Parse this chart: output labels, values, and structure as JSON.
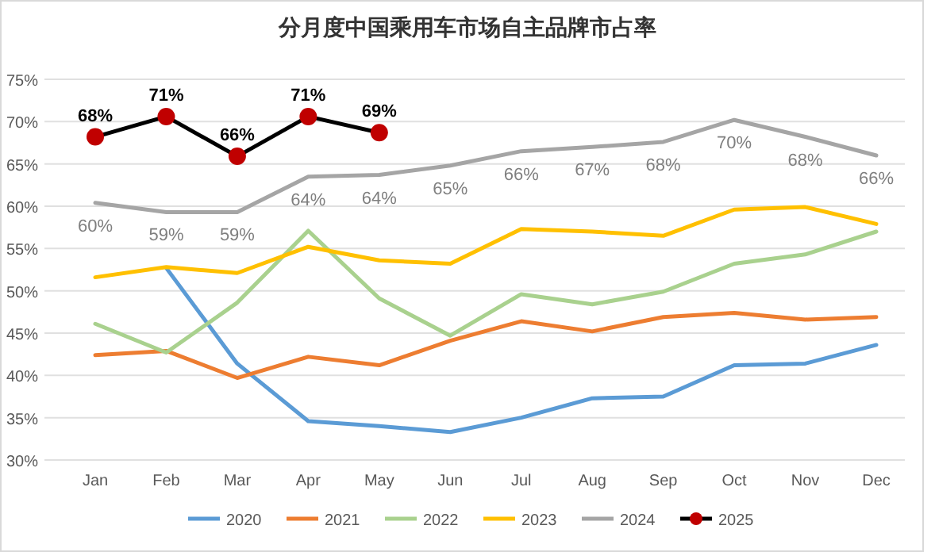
{
  "chart_data": {
    "type": "line",
    "title": "分月度中国乘用车市场自主品牌市占率",
    "categories": [
      "Jan",
      "Feb",
      "Mar",
      "Apr",
      "May",
      "Jun",
      "Jul",
      "Aug",
      "Sep",
      "Oct",
      "Nov",
      "Dec"
    ],
    "ylim": [
      30,
      75
    ],
    "yticks": [
      {
        "value": 30,
        "label": "30%"
      },
      {
        "value": 35,
        "label": "35%"
      },
      {
        "value": 40,
        "label": "40%"
      },
      {
        "value": 45,
        "label": "45%"
      },
      {
        "value": 50,
        "label": "50%"
      },
      {
        "value": 55,
        "label": "55%"
      },
      {
        "value": 60,
        "label": "60%"
      },
      {
        "value": 65,
        "label": "65%"
      },
      {
        "value": 70,
        "label": "70%"
      },
      {
        "value": 75,
        "label": "75%"
      }
    ],
    "grid": "y",
    "legend": "bottom",
    "series": [
      {
        "name": "2020",
        "color": "#5b9bd5",
        "values": [
          null,
          52.7,
          41.4,
          34.6,
          34.0,
          33.3,
          35.0,
          37.3,
          37.5,
          41.2,
          41.4,
          43.6
        ]
      },
      {
        "name": "2021",
        "color": "#ed7d31",
        "values": [
          42.4,
          42.9,
          39.7,
          42.2,
          41.2,
          44.1,
          46.4,
          45.2,
          46.9,
          47.4,
          46.6,
          46.9
        ]
      },
      {
        "name": "2022",
        "color": "#a9d18e",
        "values": [
          46.1,
          42.7,
          48.6,
          57.1,
          49.1,
          44.7,
          49.6,
          48.4,
          49.9,
          53.2,
          54.3,
          57.0
        ]
      },
      {
        "name": "2023",
        "color": "#ffc000",
        "values": [
          51.6,
          52.8,
          52.1,
          55.2,
          53.6,
          53.2,
          57.3,
          57.0,
          56.5,
          59.6,
          59.9,
          57.9
        ]
      },
      {
        "name": "2024",
        "color": "#a5a5a5",
        "values": [
          60.4,
          59.3,
          59.3,
          63.5,
          63.7,
          64.8,
          66.5,
          67.0,
          67.6,
          70.2,
          68.2,
          66.0
        ],
        "value_labels": [
          "60%",
          "59%",
          "59%",
          "64%",
          "64%",
          "65%",
          "66%",
          "67%",
          "68%",
          "70%",
          "68%",
          "66%"
        ]
      },
      {
        "name": "2025",
        "color": "#000000",
        "marker": "circle",
        "colors": [
          "#c00000",
          "#c00000",
          "#c00000",
          "#c00000",
          "#c00000",
          null,
          null,
          null,
          null,
          null,
          null,
          null
        ],
        "values": [
          68.2,
          70.6,
          65.9,
          70.6,
          68.7,
          null,
          null,
          null,
          null,
          null,
          null,
          null
        ],
        "value_labels": [
          "68%",
          "71%",
          "66%",
          "71%",
          "69%",
          null,
          null,
          null,
          null,
          null,
          null,
          null
        ]
      }
    ]
  }
}
